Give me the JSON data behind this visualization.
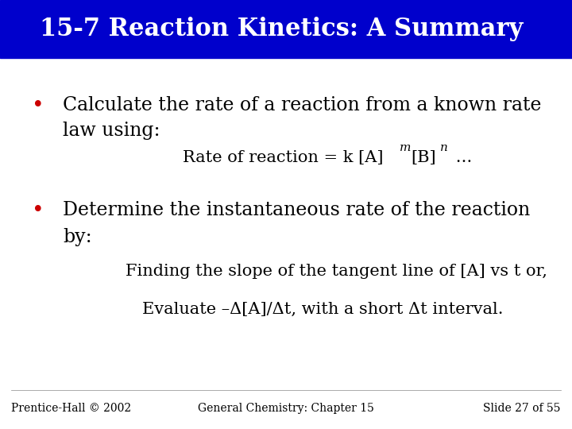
{
  "title": "15-7 Reaction Kinetics: A Summary",
  "title_bg_color": "#0000CC",
  "title_text_color": "#FFFFFF",
  "bg_color": "#FFFFFF",
  "bullet_color": "#CC0000",
  "body_text_color": "#000000",
  "bullet1_line1": "Calculate the rate of a reaction from a known rate",
  "bullet1_line2": "law using:",
  "bullet2_line1": "Determine the instantaneous rate of the reaction",
  "bullet2_line2": "by:",
  "bullet2_sub1": "Finding the slope of the tangent line of [A] vs t or,",
  "bullet2_sub2": "Evaluate –Δ[A]/Δt, with a short Δt interval.",
  "footer_left": "Prentice-Hall © 2002",
  "footer_center": "General Chemistry: Chapter 15",
  "footer_right": "Slide 27 of 55",
  "title_font_size": 22,
  "body_font_size": 17,
  "sub_font_size": 15,
  "footer_font_size": 10
}
